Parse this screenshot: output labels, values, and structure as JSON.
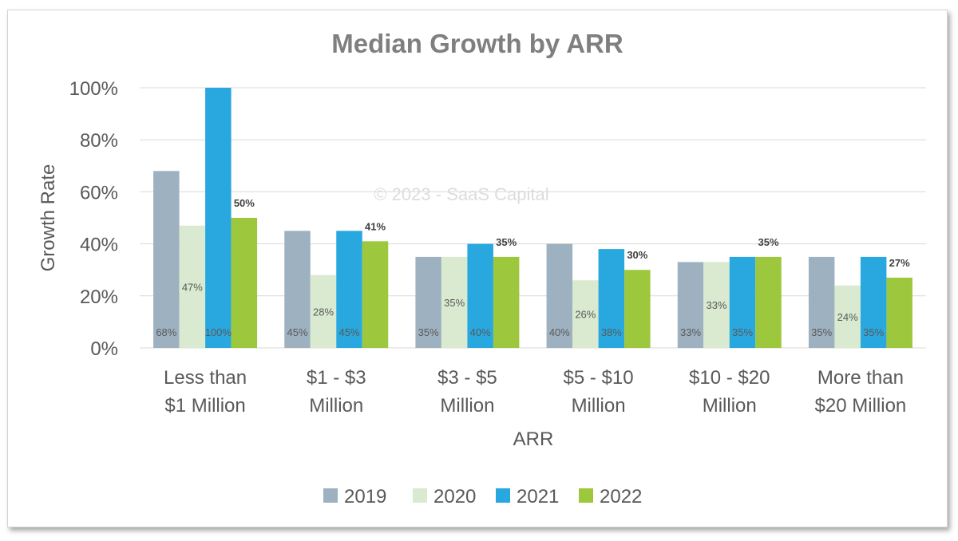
{
  "chart_data": {
    "type": "bar",
    "title": "Median Growth by ARR",
    "xlabel": "ARR",
    "ylabel": "Growth Rate",
    "ylim": [
      0,
      100
    ],
    "y_ticks": [
      "0%",
      "20%",
      "40%",
      "60%",
      "80%",
      "100%"
    ],
    "categories": [
      [
        "Less than",
        "$1 Million"
      ],
      [
        "$1 - $3",
        "Million"
      ],
      [
        "$3 - $5",
        "Million"
      ],
      [
        "$5 - $10",
        "Million"
      ],
      [
        "$10 - $20",
        "Million"
      ],
      [
        "More than",
        "$20 Million"
      ]
    ],
    "series": [
      {
        "name": "2019",
        "color": "#9eb1c1",
        "values": [
          68,
          45,
          35,
          40,
          33,
          35
        ]
      },
      {
        "name": "2020",
        "color": "#d9ead0",
        "values": [
          47,
          28,
          35,
          26,
          33,
          24
        ]
      },
      {
        "name": "2021",
        "color": "#29a8df",
        "values": [
          100,
          45,
          40,
          38,
          35,
          35
        ]
      },
      {
        "name": "2022",
        "color": "#9dc83d",
        "values": [
          50,
          41,
          35,
          30,
          35,
          27
        ]
      }
    ],
    "inside_labels": [
      {
        "series": 0,
        "labels": [
          "68%",
          "45%",
          "35%",
          "40%",
          "33%",
          "35%"
        ]
      },
      {
        "series": 1,
        "labels": [
          "47%",
          "28%",
          "35%",
          "26%",
          "33%",
          "24%"
        ]
      },
      {
        "series": 2,
        "labels": [
          "100%",
          "45%",
          "40%",
          "38%",
          "35%",
          "35%"
        ]
      }
    ],
    "top_labels": {
      "series": 3,
      "labels": [
        "50%",
        "41%",
        "35%",
        "30%",
        "35%",
        "27%"
      ]
    },
    "grid": true,
    "legend_position": "bottom",
    "watermark": "© 2023 - SaaS Capital"
  }
}
